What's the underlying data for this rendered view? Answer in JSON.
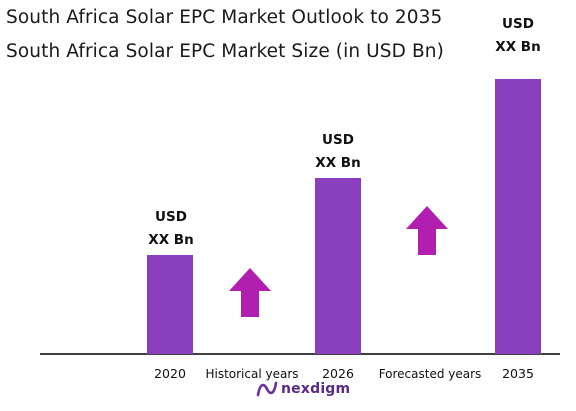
{
  "titles": {
    "line1": "South Africa Solar EPC Market Outlook to 2035",
    "line2": "South Africa Solar EPC Market Size (in USD Bn)"
  },
  "chart_data": {
    "type": "bar",
    "categories": [
      "2020",
      "2026",
      "2035"
    ],
    "data_labels": [
      [
        "USD",
        "XX Bn"
      ],
      [
        "USD",
        "XX Bn"
      ],
      [
        "USD",
        "XX Bn"
      ]
    ],
    "period_labels": [
      "Historical years",
      "Forecasted years"
    ],
    "bar_color": "#8a3fbf",
    "arrow_color": "#b11fb1",
    "grid": false
  },
  "logo": {
    "text": "nexdigm",
    "icon": "nexdigm-logo-icon"
  }
}
